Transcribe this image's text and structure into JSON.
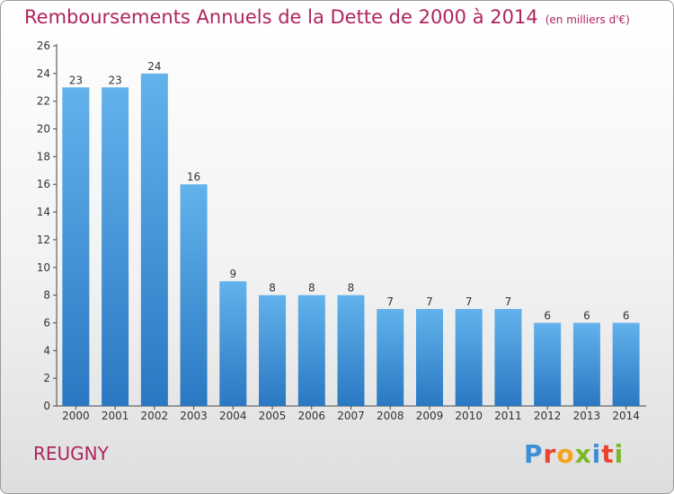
{
  "header": {
    "title": "Remboursements Annuels de la Dette de 2000 à 2014",
    "subtitle": "(en milliers d'€)"
  },
  "footer": {
    "commune": "REUGNY",
    "brand": "Proxiti",
    "brand_colors": [
      "#3d8fd6",
      "#e8442f",
      "#f4a51c",
      "#7ab929",
      "#3d8fd6",
      "#e8442f",
      "#7ab929"
    ]
  },
  "colors": {
    "bar_top": "#62b2ec",
    "bar_bottom": "#2a78c2",
    "title": "#b0245e"
  },
  "chart_data": {
    "type": "bar",
    "categories": [
      "2000",
      "2001",
      "2002",
      "2003",
      "2004",
      "2005",
      "2006",
      "2007",
      "2008",
      "2009",
      "2010",
      "2011",
      "2012",
      "2013",
      "2014"
    ],
    "values": [
      23,
      23,
      24,
      16,
      9,
      8,
      8,
      8,
      7,
      7,
      7,
      7,
      6,
      6,
      6
    ],
    "title": "Remboursements Annuels de la Dette de 2000 à 2014",
    "ylim": [
      0,
      26
    ],
    "yticks": [
      0,
      2,
      4,
      6,
      8,
      10,
      12,
      14,
      16,
      18,
      20,
      22,
      24,
      26
    ],
    "grid": false,
    "legend": "none"
  }
}
